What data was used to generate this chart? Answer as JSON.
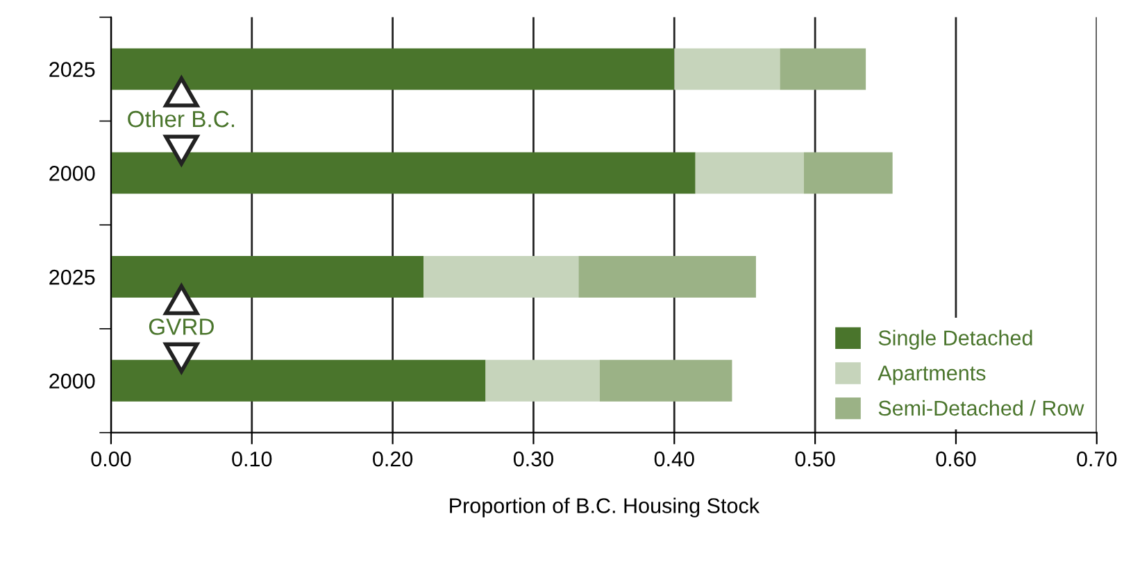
{
  "chart_data": {
    "type": "bar",
    "orientation": "horizontal",
    "stacked": true,
    "categories": [
      "2025",
      "2000",
      "2025",
      "2000"
    ],
    "series": [
      {
        "name": "Single Detached",
        "color": "#4a752c",
        "values": [
          0.4,
          0.415,
          0.222,
          0.266
        ]
      },
      {
        "name": "Apartments",
        "color": "#c6d4bb",
        "values": [
          0.075,
          0.077,
          0.11,
          0.081
        ]
      },
      {
        "name": "Semi-Detached / Row",
        "color": "#9bb286",
        "values": [
          0.061,
          0.063,
          0.126,
          0.094
        ]
      }
    ],
    "xlabel": "Proportion of B.C. Housing Stock",
    "xlim": [
      0,
      0.7
    ],
    "xticks": [
      {
        "value": 0,
        "label": "0.00"
      },
      {
        "value": 0.1,
        "label": "0.10"
      },
      {
        "value": 0.2,
        "label": "0.20"
      },
      {
        "value": 0.3,
        "label": "0.30"
      },
      {
        "value": 0.4,
        "label": "0.40"
      },
      {
        "value": 0.5,
        "label": "0.50"
      },
      {
        "value": 0.6,
        "label": "0.60"
      },
      {
        "value": 0.7,
        "label": "0.70"
      }
    ],
    "annotations": [
      "Other B.C.",
      "GVRD"
    ],
    "grid": "x",
    "legend": "bottom right"
  }
}
